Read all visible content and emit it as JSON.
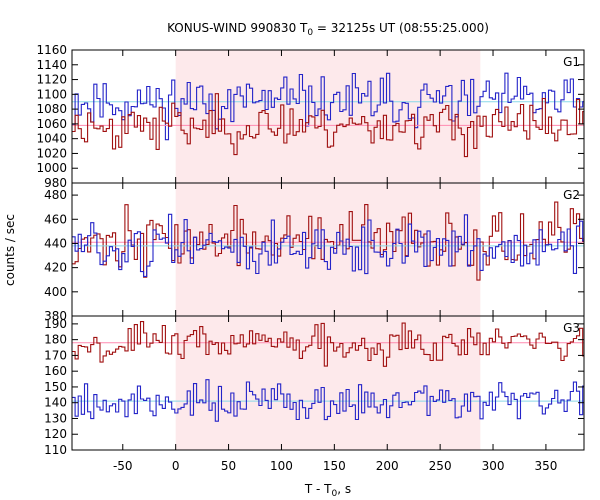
{
  "chart_data": {
    "type": "line",
    "title_prefix": "KONUS-WIND 990830 T",
    "title_subscript": "0",
    "title_suffix": " = 32125s UT (08:55:25.000)",
    "xlabel_prefix": "T - T",
    "xlabel_subscript": "0",
    "xlabel_suffix": ", s",
    "ylabel": "counts / sec",
    "xlim": [
      -98,
      386
    ],
    "xticks": [
      -50,
      0,
      50,
      100,
      150,
      200,
      250,
      300,
      350
    ],
    "bin_width": 2.944,
    "shaded_interval": [
      0,
      288
    ],
    "colors": {
      "series_a": "#a01010",
      "series_b": "#2424c8",
      "shade": "#fde9eb",
      "bg_line_a": "#ff8ab0",
      "bg_line_b": "#8ad8e8"
    },
    "panels": [
      {
        "name": "G1",
        "ylim": [
          980,
          1160
        ],
        "yticks": [
          980,
          1000,
          1020,
          1040,
          1060,
          1080,
          1100,
          1120,
          1140,
          1160
        ],
        "series": [
          {
            "name": "G1 histogram (blue)",
            "mean": 1090,
            "noise": 17,
            "seed": 11,
            "background": 1090
          },
          {
            "name": "G1 histogram (red)",
            "mean": 1058,
            "noise": 16,
            "seed": 23,
            "background": 1058
          }
        ]
      },
      {
        "name": "G2",
        "ylim": [
          380,
          490
        ],
        "yticks": [
          380,
          400,
          420,
          440,
          460,
          480
        ],
        "series": [
          {
            "name": "G2 histogram (red)",
            "mean": 442,
            "noise": 12,
            "seed": 37,
            "background": 441
          },
          {
            "name": "G2 histogram (blue)",
            "mean": 437,
            "noise": 11,
            "seed": 51,
            "background": 438
          }
        ]
      },
      {
        "name": "G3",
        "ylim": [
          110,
          195
        ],
        "yticks": [
          110,
          120,
          130,
          140,
          150,
          160,
          170,
          180,
          190
        ],
        "series": [
          {
            "name": "G3 histogram (red)",
            "mean": 178,
            "noise": 6,
            "seed": 67,
            "background": 178
          },
          {
            "name": "G3 histogram (blue)",
            "mean": 141,
            "noise": 6.5,
            "seed": 79,
            "background": 141
          }
        ]
      }
    ]
  }
}
